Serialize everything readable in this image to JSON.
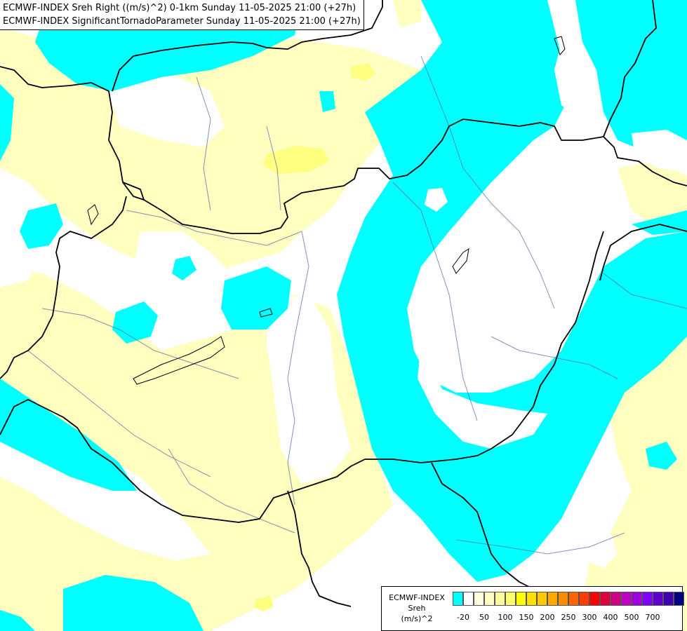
{
  "title": {
    "line1": "ECMWF-INDEX Sreh Right ((m/s)^2) 0-1km Sunday 11-05-2025 21:00 (+27h)",
    "line2": "ECMWF-INDEX SignificantTornadoParameter Sunday 11-05-2025 21:00 (+27h)"
  },
  "legend": {
    "source": "ECMWF-INDEX",
    "variable": "Sreh",
    "unit": "(m/s)^2",
    "colors": [
      "#00ffff",
      "#ffffff",
      "#ffffe0",
      "#ffffc0",
      "#ffffa0",
      "#ffff70",
      "#ffff00",
      "#ffe000",
      "#ffc800",
      "#ffa800",
      "#ff8c00",
      "#ff6400",
      "#ff3c00",
      "#ff0000",
      "#e00040",
      "#d00080",
      "#c000c0",
      "#a000e0",
      "#8000ff",
      "#6000d0",
      "#4000b0",
      "#000080"
    ],
    "tick_labels": [
      "-20",
      "50",
      "100",
      "150",
      "200",
      "250",
      "300",
      "400",
      "500",
      "700"
    ]
  },
  "map": {
    "colors": {
      "cyan": "#00ffff",
      "yellow": "#ffffc0",
      "bright_yellow": "#ffff80",
      "white": "#ffffff",
      "border": "#000000",
      "river": "#5a6fa8"
    }
  }
}
